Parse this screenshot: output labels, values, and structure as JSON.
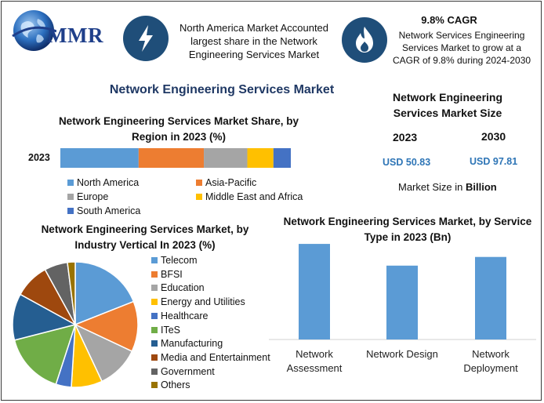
{
  "logo": {
    "text": "MMR"
  },
  "header": {
    "box1_text": "North America Market Accounted largest share in the Network Engineering Services Market",
    "box2_title": "9.8% CAGR",
    "box2_text": "Network Services Engineering Services Market to grow at a CAGR of 9.8% during 2024-2030",
    "icon1": "lightning-bolt-icon",
    "icon2": "flame-icon",
    "icon_bg_color": "#1f4e79"
  },
  "main_title": "Network Engineering Services Market",
  "market_size": {
    "title_line1": "Network Engineering",
    "title_line2": "Services Market Size",
    "year1": "2023",
    "year2": "2030",
    "value1": "USD 50.83",
    "value2": "USD 97.81",
    "unit_prefix": "Market Size in ",
    "unit_bold": "Billion"
  },
  "chart_data": [
    {
      "type": "bar",
      "orientation": "horizontal-stacked",
      "title": "Network Engineering Services Market Share, by Region in 2023 (%)",
      "categories": [
        "2023"
      ],
      "series": [
        {
          "name": "North America",
          "values": [
            36
          ],
          "color": "#5b9bd5"
        },
        {
          "name": "Asia-Pacific",
          "values": [
            30
          ],
          "color": "#ed7d31"
        },
        {
          "name": "Europe",
          "values": [
            20
          ],
          "color": "#a5a5a5"
        },
        {
          "name": "Middle East and Africa",
          "values": [
            12
          ],
          "color": "#ffc000"
        },
        {
          "name": "South America",
          "values": [
            8
          ],
          "color": "#4472c4"
        }
      ],
      "legend_placement": "bottom"
    },
    {
      "type": "pie",
      "title": "Network Engineering Services Market, by Industry Vertical In 2023 (%)",
      "labels": [
        "Telecom",
        "BFSI",
        "Education",
        "Energy and Utilities",
        "Healthcare",
        "ITeS",
        "Manufacturing",
        "Media and Entertainment",
        "Government",
        "Others"
      ],
      "values": [
        19,
        13,
        11,
        8,
        4,
        16,
        12,
        9,
        6,
        2
      ],
      "colors": [
        "#5b9bd5",
        "#ed7d31",
        "#a5a5a5",
        "#ffc000",
        "#4472c4",
        "#70ad47",
        "#255e91",
        "#9e480e",
        "#636363",
        "#997300"
      ],
      "legend_placement": "right"
    },
    {
      "type": "bar",
      "title": "Network Engineering Services Market, by Service Type in 2023 (Bn)",
      "categories": [
        "Network Assessment",
        "Network Design",
        "Network Deployment"
      ],
      "values": [
        22,
        17,
        19
      ],
      "color": "#5b9bd5",
      "ylim": [
        0,
        24
      ],
      "grid": false
    }
  ]
}
